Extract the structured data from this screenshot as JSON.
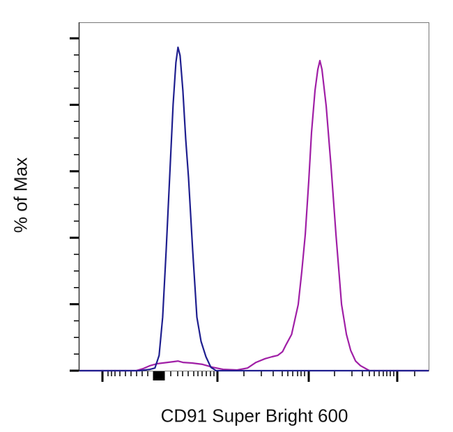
{
  "chart_data": {
    "type": "line",
    "title": "",
    "xlabel": "CD91 Super Bright 600",
    "ylabel": "% of Max",
    "xscale": "biexponential (unlabeled log ticks)",
    "xlim": [
      0,
      1000
    ],
    "ylim": [
      0,
      105
    ],
    "y_major_ticks": [
      0,
      20,
      40,
      60,
      80,
      100
    ],
    "grid": false,
    "legend": "none",
    "series": [
      {
        "color": "#1f1f8f",
        "x": [
          0,
          173,
          203,
          217,
          229,
          239,
          249,
          259,
          269,
          277,
          283,
          289,
          297,
          305,
          313,
          325,
          337,
          349,
          363,
          377,
          392,
          1000
        ],
        "y": [
          0,
          0,
          0.4,
          0.8,
          4.6,
          16.1,
          36.1,
          58.1,
          80.1,
          92.7,
          97.3,
          94.8,
          84.3,
          69.6,
          58.1,
          36.1,
          16.1,
          8.8,
          4.2,
          1.0,
          0,
          0
        ]
      },
      {
        "color": "#a01fa6",
        "x": [
          0,
          163,
          183,
          203,
          223,
          253,
          269,
          283,
          297,
          323,
          353,
          383,
          412,
          452,
          482,
          506,
          532,
          552,
          568,
          582,
          592,
          608,
          627,
          637,
          647,
          657,
          665,
          675,
          683,
          689,
          695,
          707,
          721,
          735,
          751,
          765,
          777,
          791,
          805,
          831,
          1000
        ],
        "y": [
          0,
          0,
          0.6,
          1.5,
          2.1,
          2.5,
          2.7,
          2.9,
          2.5,
          2.3,
          1.9,
          1.0,
          0.4,
          0.2,
          0.8,
          2.5,
          3.6,
          4.2,
          4.6,
          5.7,
          7.8,
          10.9,
          19.9,
          29.8,
          40.9,
          57.0,
          71.7,
          84.3,
          90.6,
          93.3,
          90.6,
          79.5,
          61.2,
          40.9,
          19.9,
          10.9,
          6.1,
          2.9,
          1.5,
          0,
          0
        ]
      }
    ]
  }
}
